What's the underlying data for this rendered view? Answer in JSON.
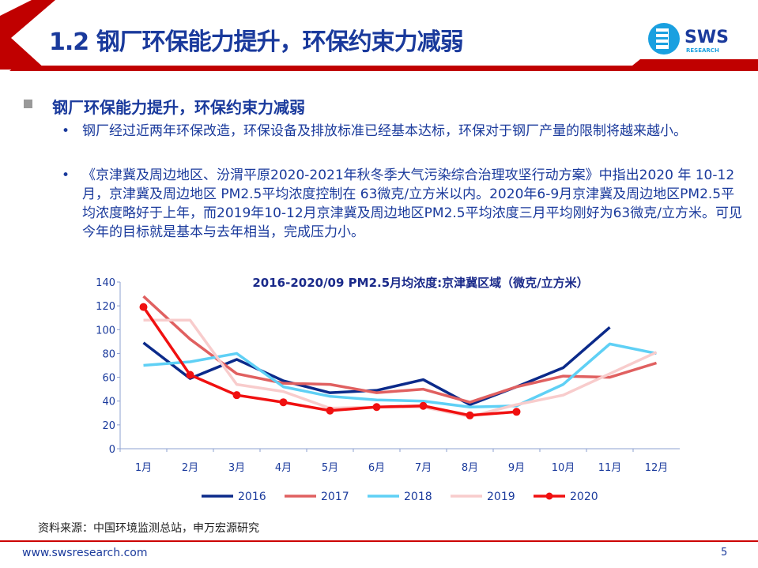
{
  "header": {
    "title": "1.2 钢厂环保能力提升，环保约束力减弱",
    "logo_text": "SWS",
    "logo_sub": "RESEARCH"
  },
  "section": {
    "heading": "钢厂环保能力提升，环保约束力减弱",
    "bullets": [
      "钢厂经过近两年环保改造，环保设备及排放标准已经基本达标，环保对于钢厂产量的限制将越来越小。",
      "《京津冀及周边地区、汾渭平原2020-2021年秋冬季大气污染综合治理攻坚行动方案》中指出2020 年 10-12 月，京津冀及周边地区 PM2.5平均浓度控制在 63微克/立方米以内。2020年6-9月京津冀及周边地区PM2.5平均浓度略好于上年，而2019年10-12月京津冀及周边地区PM2.5平均浓度三月平均刚好为63微克/立方米。可见今年的目标就是基本与去年相当，完成压力小。"
    ]
  },
  "chart_data": {
    "type": "line",
    "title": "2016-2020/09 PM2.5月均浓度:京津冀区域（微克/立方米）",
    "categories": [
      "1月",
      "2月",
      "3月",
      "4月",
      "5月",
      "6月",
      "7月",
      "8月",
      "9月",
      "10月",
      "11月",
      "12月"
    ],
    "ylim": [
      0,
      140
    ],
    "yticks": [
      0,
      20,
      40,
      60,
      80,
      100,
      120,
      140
    ],
    "grid": false,
    "legend": "bottom",
    "series": [
      {
        "name": "2016",
        "color": "#0b2a8a",
        "values": [
          89,
          59,
          75,
          57,
          47,
          49,
          58,
          37,
          52,
          68,
          102,
          null
        ]
      },
      {
        "name": "2017",
        "color": "#e06060",
        "values": [
          128,
          92,
          63,
          55,
          54,
          47,
          50,
          39,
          52,
          61,
          60,
          72
        ]
      },
      {
        "name": "2018",
        "color": "#5fd0f5",
        "values": [
          70,
          73,
          80,
          52,
          44,
          41,
          40,
          35,
          36,
          54,
          88,
          80
        ]
      },
      {
        "name": "2019",
        "color": "#f8cccc",
        "values": [
          108,
          108,
          54,
          48,
          34,
          35,
          35,
          27,
          37,
          45,
          63,
          81
        ]
      },
      {
        "name": "2020",
        "color": "#f01010",
        "marker": true,
        "values": [
          119,
          62,
          45,
          39,
          32,
          35,
          36,
          28,
          31,
          null,
          null,
          null
        ]
      }
    ]
  },
  "footer": {
    "source": "资料来源：中国环境监测总站，申万宏源研究",
    "url": "www.swsresearch.com",
    "page": "5"
  }
}
